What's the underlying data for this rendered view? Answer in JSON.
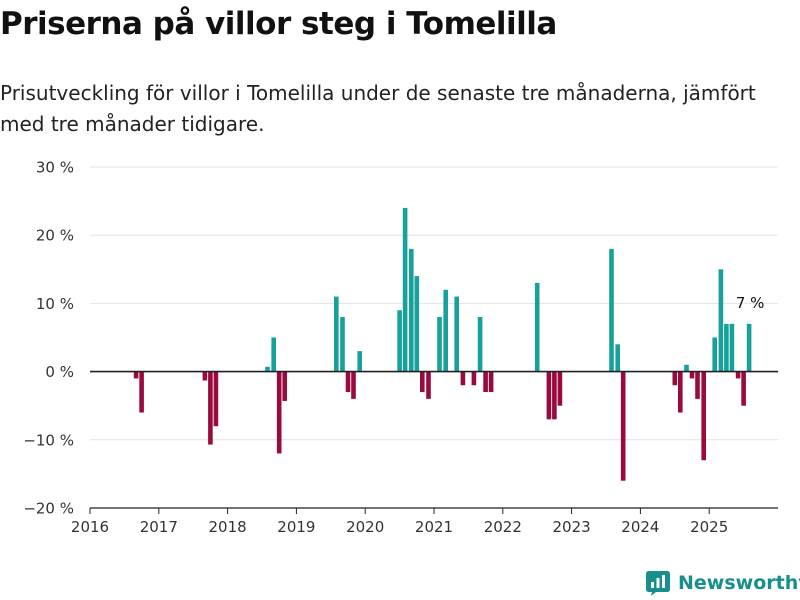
{
  "title": "Priserna på villor steg i Tomelilla",
  "subtitle": "Prisutveckling för villor i Tomelilla under de senaste tre månaderna, jämfört med tre månader tidigare.",
  "brand": {
    "name": "Newsworthy",
    "icon": "newsworthy-logo-icon",
    "color": "#178f8a"
  },
  "colors": {
    "positive": "#16a19b",
    "negative": "#9b0a3e",
    "grid": "#e2e2e2",
    "axis": "#222222"
  },
  "chart_data": {
    "type": "bar",
    "ylim": [
      -20,
      30
    ],
    "yticks": [
      {
        "value": 30,
        "label": "30 %"
      },
      {
        "value": 20,
        "label": "20 %"
      },
      {
        "value": 10,
        "label": "10 %"
      },
      {
        "value": 0,
        "label": "0 %"
      },
      {
        "value": -10,
        "label": "−10 %"
      },
      {
        "value": -20,
        "label": "−20 %"
      }
    ],
    "xlim": [
      2016,
      2026
    ],
    "xticks": [
      "2016",
      "2017",
      "2018",
      "2019",
      "2020",
      "2021",
      "2022",
      "2023",
      "2024",
      "2025"
    ],
    "grid": true,
    "annotation": {
      "text": "7 %",
      "x": 2025.58,
      "y": 7
    },
    "series": [
      {
        "points": [
          {
            "x": 2016.67,
            "y": -1
          },
          {
            "x": 2016.75,
            "y": -6
          },
          {
            "x": 2017.67,
            "y": -1.3
          },
          {
            "x": 2017.75,
            "y": -10.7
          },
          {
            "x": 2017.83,
            "y": -8
          },
          {
            "x": 2018.58,
            "y": 0.7
          },
          {
            "x": 2018.67,
            "y": 5
          },
          {
            "x": 2018.75,
            "y": -12
          },
          {
            "x": 2018.83,
            "y": -4.3
          },
          {
            "x": 2019.58,
            "y": 11
          },
          {
            "x": 2019.67,
            "y": 8
          },
          {
            "x": 2019.75,
            "y": -3
          },
          {
            "x": 2019.83,
            "y": -4
          },
          {
            "x": 2019.92,
            "y": 3
          },
          {
            "x": 2020.5,
            "y": 9
          },
          {
            "x": 2020.58,
            "y": 24
          },
          {
            "x": 2020.67,
            "y": 18
          },
          {
            "x": 2020.75,
            "y": 14
          },
          {
            "x": 2020.83,
            "y": -3
          },
          {
            "x": 2020.92,
            "y": -4
          },
          {
            "x": 2021.08,
            "y": 8
          },
          {
            "x": 2021.17,
            "y": 12
          },
          {
            "x": 2021.33,
            "y": 11
          },
          {
            "x": 2021.42,
            "y": -2
          },
          {
            "x": 2021.58,
            "y": -2
          },
          {
            "x": 2021.67,
            "y": 8
          },
          {
            "x": 2021.75,
            "y": -3
          },
          {
            "x": 2021.83,
            "y": -3
          },
          {
            "x": 2022.5,
            "y": 13
          },
          {
            "x": 2022.67,
            "y": -7
          },
          {
            "x": 2022.75,
            "y": -7
          },
          {
            "x": 2022.83,
            "y": -5
          },
          {
            "x": 2023.58,
            "y": 18
          },
          {
            "x": 2023.67,
            "y": 4
          },
          {
            "x": 2023.75,
            "y": -16
          },
          {
            "x": 2024.5,
            "y": -2
          },
          {
            "x": 2024.58,
            "y": -6
          },
          {
            "x": 2024.67,
            "y": 1
          },
          {
            "x": 2024.75,
            "y": -1
          },
          {
            "x": 2024.83,
            "y": -4
          },
          {
            "x": 2024.92,
            "y": -13
          },
          {
            "x": 2025.08,
            "y": 5
          },
          {
            "x": 2025.17,
            "y": 15
          },
          {
            "x": 2025.25,
            "y": 7
          },
          {
            "x": 2025.33,
            "y": 7
          },
          {
            "x": 2025.42,
            "y": -1
          },
          {
            "x": 2025.5,
            "y": -5
          },
          {
            "x": 2025.58,
            "y": 7
          }
        ]
      }
    ]
  }
}
